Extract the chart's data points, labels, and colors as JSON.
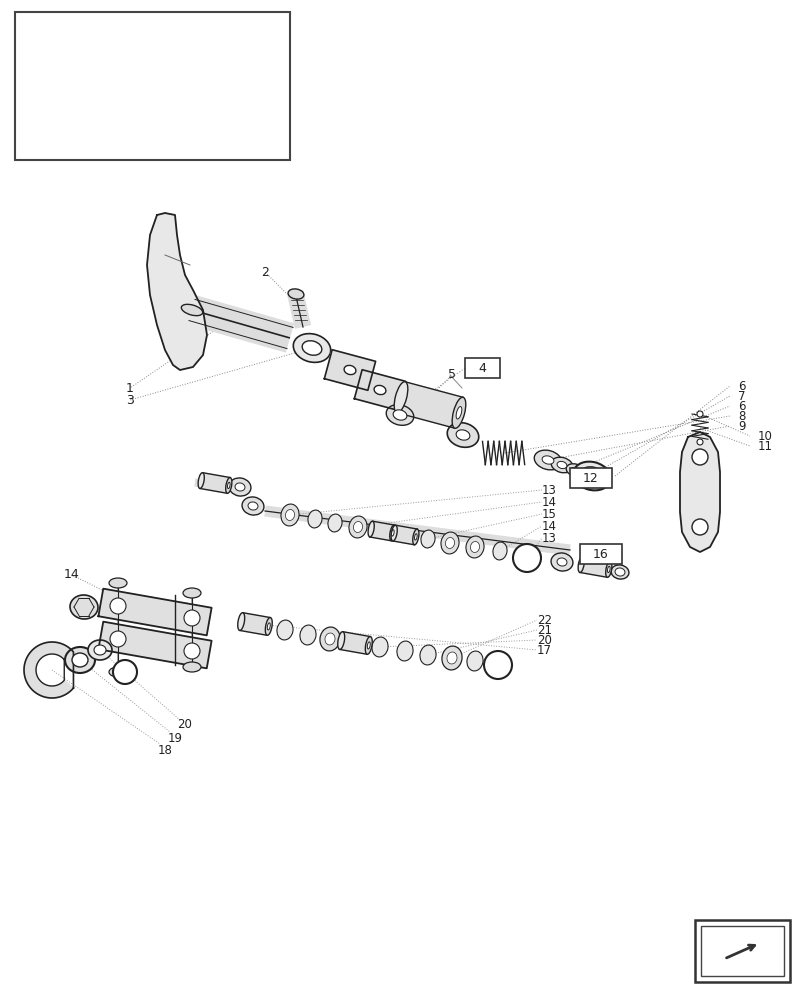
{
  "bg_color": "#ffffff",
  "dc": "#222222",
  "lc": "#555555",
  "gc": "#cccccc",
  "figsize": [
    8.12,
    10.0
  ],
  "dpi": 100
}
